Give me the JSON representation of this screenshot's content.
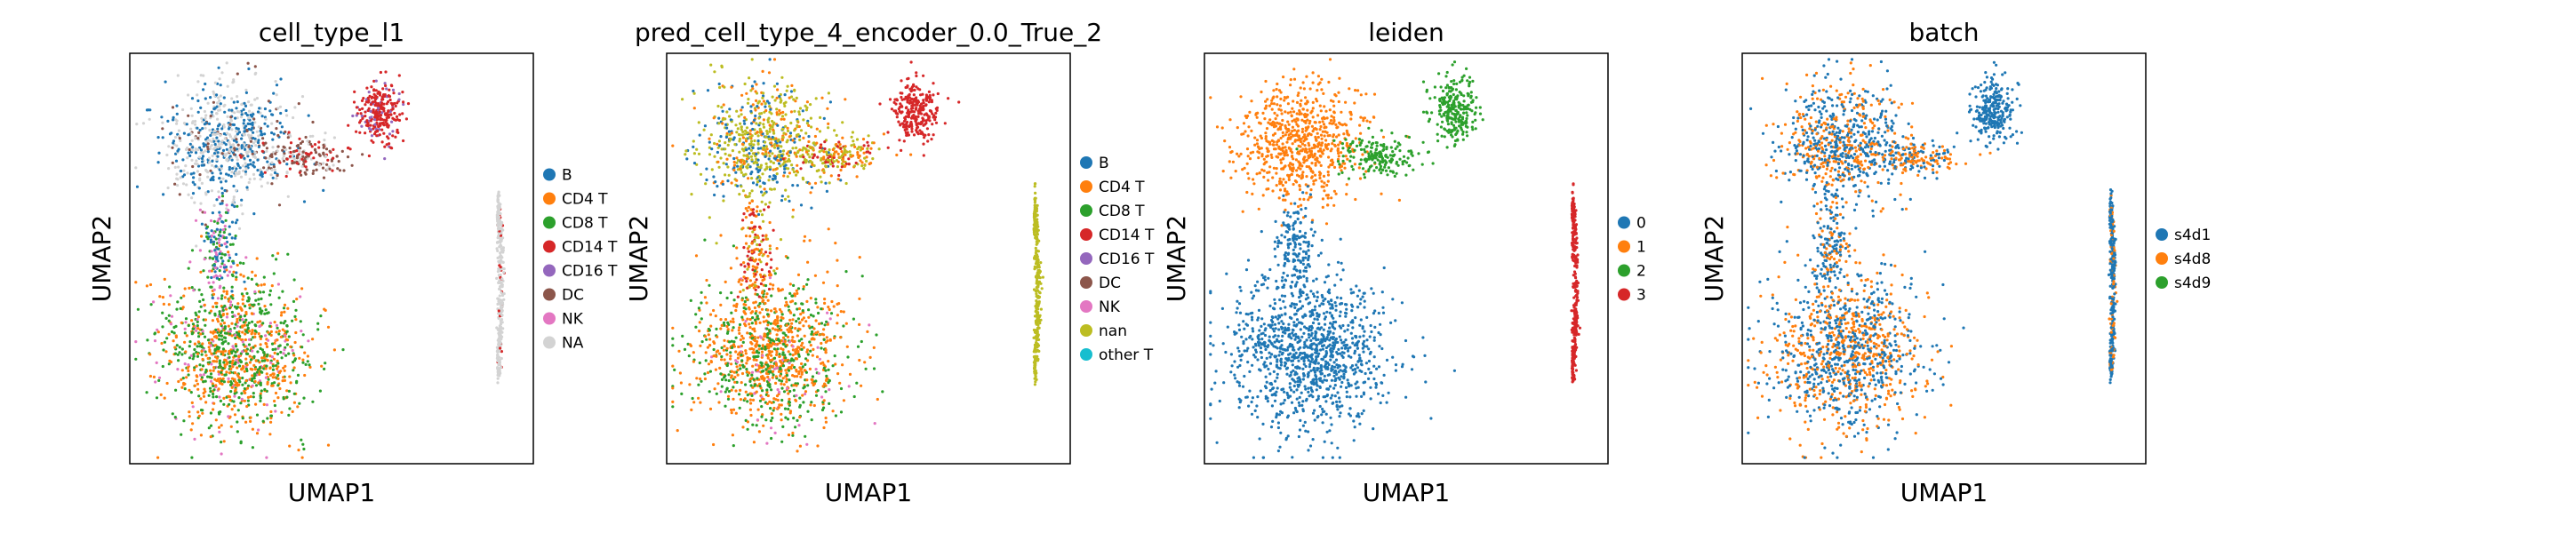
{
  "chart_data": [
    {
      "type": "scatter",
      "title": "cell_type_l1",
      "xlabel": "UMAP1",
      "ylabel": "UMAP2",
      "legend_position": "right",
      "grid": false,
      "series": [
        {
          "name": "B",
          "color": "#1f77b4"
        },
        {
          "name": "CD4 T",
          "color": "#ff7f0e"
        },
        {
          "name": "CD8 T",
          "color": "#2ca02c"
        },
        {
          "name": "CD14 T",
          "color": "#d62728"
        },
        {
          "name": "CD16 T",
          "color": "#9467bd"
        },
        {
          "name": "DC",
          "color": "#8c564b"
        },
        {
          "name": "NK",
          "color": "#e377c2"
        },
        {
          "name": "NA",
          "color": "#d3d3d3"
        }
      ]
    },
    {
      "type": "scatter",
      "title": "pred_cell_type_4_encoder_0.0_True_2",
      "xlabel": "UMAP1",
      "ylabel": "UMAP2",
      "legend_position": "right",
      "grid": false,
      "series": [
        {
          "name": "B",
          "color": "#1f77b4"
        },
        {
          "name": "CD4 T",
          "color": "#ff7f0e"
        },
        {
          "name": "CD8 T",
          "color": "#2ca02c"
        },
        {
          "name": "CD14 T",
          "color": "#d62728"
        },
        {
          "name": "CD16 T",
          "color": "#9467bd"
        },
        {
          "name": "DC",
          "color": "#8c564b"
        },
        {
          "name": "NK",
          "color": "#e377c2"
        },
        {
          "name": "nan",
          "color": "#bcbd22"
        },
        {
          "name": "other T",
          "color": "#17becf"
        }
      ]
    },
    {
      "type": "scatter",
      "title": "leiden",
      "xlabel": "UMAP1",
      "ylabel": "UMAP2",
      "legend_position": "right",
      "grid": false,
      "series": [
        {
          "name": "0",
          "color": "#1f77b4"
        },
        {
          "name": "1",
          "color": "#ff7f0e"
        },
        {
          "name": "2",
          "color": "#2ca02c"
        },
        {
          "name": "3",
          "color": "#d62728"
        }
      ]
    },
    {
      "type": "scatter",
      "title": "batch",
      "xlabel": "UMAP1",
      "ylabel": "UMAP2",
      "legend_position": "right",
      "grid": false,
      "series": [
        {
          "name": "s4d1",
          "color": "#1f77b4"
        },
        {
          "name": "s4d8",
          "color": "#ff7f0e"
        },
        {
          "name": "s4d9",
          "color": "#2ca02c"
        }
      ]
    }
  ]
}
